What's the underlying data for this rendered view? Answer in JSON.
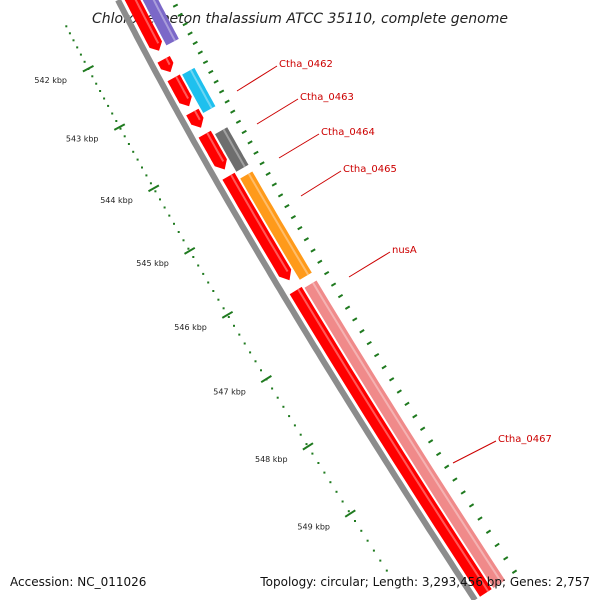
{
  "title": "Chloroherpeton thalassium ATCC 35110, complete genome",
  "footer": {
    "accession": "Accession: NC_011026",
    "summary": "Topology: circular; Length: 3,293,456 bp; Genes: 2,757"
  },
  "ruler": {
    "ticks": [
      "542 kbp",
      "543 kbp",
      "544 kbp",
      "545 kbp",
      "546 kbp",
      "547 kbp",
      "548 kbp",
      "549 kbp"
    ]
  },
  "colors": {
    "backbone": "#8c8c8c",
    "cds": "#ff0000",
    "label": "#cc0000",
    "ruler": "#1f7a1f"
  },
  "genes": [
    {
      "label": "",
      "color": "#7b68c8"
    },
    {
      "label": "Ctha_0462",
      "color": "#ff0000"
    },
    {
      "label": "Ctha_0463",
      "color": "#1ec0ee"
    },
    {
      "label": "Ctha_0464",
      "color": "#ff0000"
    },
    {
      "label": "Ctha_0465",
      "color": "#6e6e6e"
    },
    {
      "label": "nusA",
      "color": "#ff9a1a"
    },
    {
      "label": "Ctha_0467",
      "color": "#f08a8a"
    }
  ]
}
